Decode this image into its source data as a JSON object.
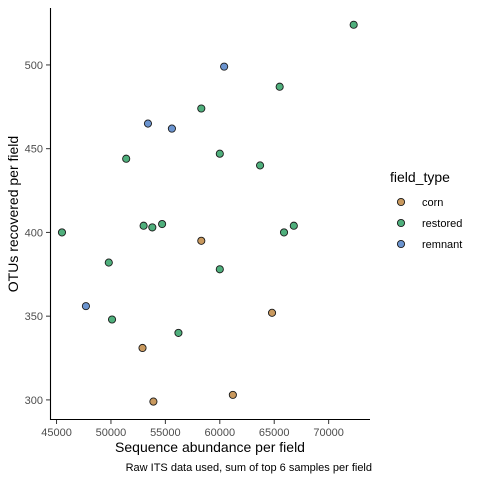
{
  "chart_data": {
    "type": "scatter",
    "title": "",
    "xlabel": "Sequence abundance per field",
    "ylabel": "OTUs recovered per field",
    "caption": "Raw ITS data used, sum of top 6 samples per field",
    "xlim": [
      44400,
      73800
    ],
    "ylim": [
      288,
      534
    ],
    "xticks": [
      45000,
      50000,
      55000,
      60000,
      65000,
      70000
    ],
    "yticks": [
      300,
      350,
      400,
      450,
      500
    ],
    "grid": false,
    "legend": {
      "title": "field_type",
      "position": "right",
      "entries": [
        {
          "label": "corn",
          "color": "#C9995E"
        },
        {
          "label": "restored",
          "color": "#4FAF7C"
        },
        {
          "label": "remnant",
          "color": "#6B94CF"
        }
      ]
    },
    "series": [
      {
        "name": "corn",
        "color": "#C9995E",
        "points": [
          {
            "x": 52900,
            "y": 331
          },
          {
            "x": 53900,
            "y": 299
          },
          {
            "x": 58300,
            "y": 395
          },
          {
            "x": 61200,
            "y": 303
          },
          {
            "x": 64800,
            "y": 352
          }
        ]
      },
      {
        "name": "restored",
        "color": "#4FAF7C",
        "points": [
          {
            "x": 45500,
            "y": 400
          },
          {
            "x": 49800,
            "y": 382
          },
          {
            "x": 50100,
            "y": 348
          },
          {
            "x": 51400,
            "y": 444
          },
          {
            "x": 53000,
            "y": 404
          },
          {
            "x": 53800,
            "y": 403
          },
          {
            "x": 54700,
            "y": 405
          },
          {
            "x": 56200,
            "y": 340
          },
          {
            "x": 58300,
            "y": 474
          },
          {
            "x": 60000,
            "y": 447
          },
          {
            "x": 60000,
            "y": 378
          },
          {
            "x": 63700,
            "y": 440
          },
          {
            "x": 65500,
            "y": 487
          },
          {
            "x": 65900,
            "y": 400
          },
          {
            "x": 66800,
            "y": 404
          },
          {
            "x": 72300,
            "y": 524
          }
        ]
      },
      {
        "name": "remnant",
        "color": "#6B94CF",
        "points": [
          {
            "x": 47700,
            "y": 356
          },
          {
            "x": 53400,
            "y": 465
          },
          {
            "x": 55600,
            "y": 462
          },
          {
            "x": 60400,
            "y": 499
          }
        ]
      }
    ]
  }
}
